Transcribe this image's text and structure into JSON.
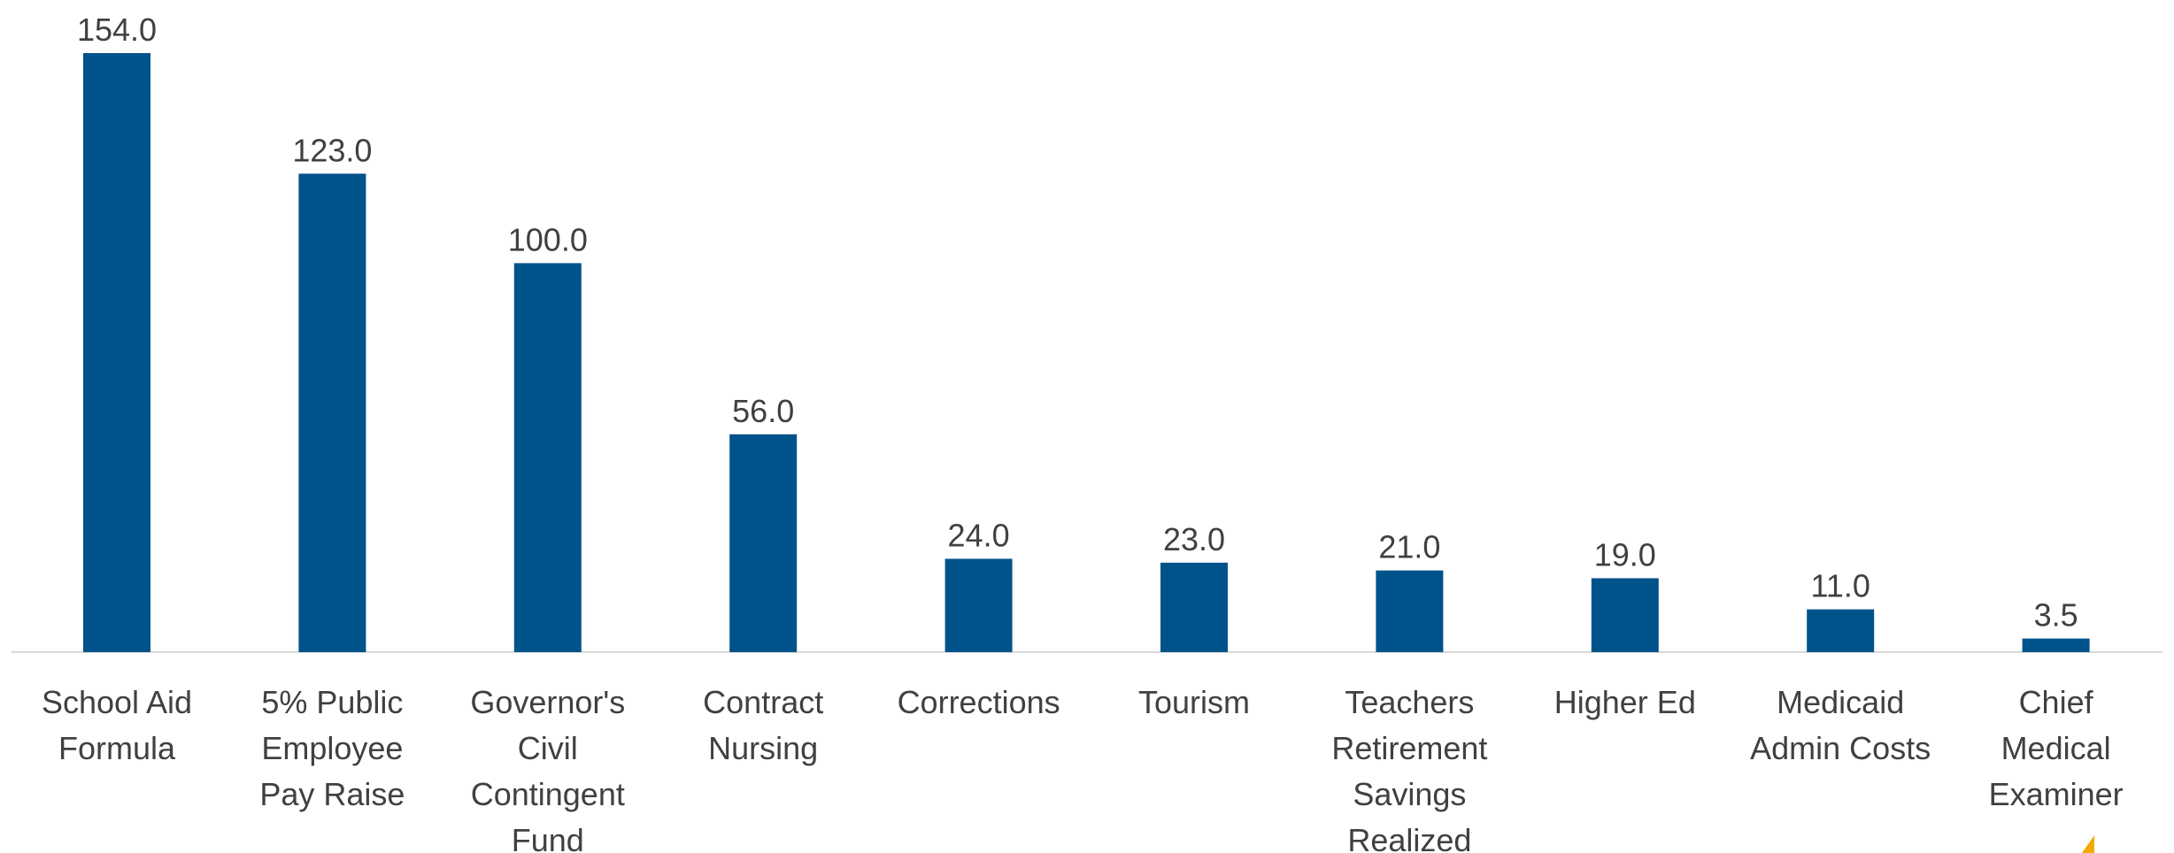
{
  "chart_data": {
    "type": "bar",
    "categories": [
      "School Aid Formula",
      "5% Public Employee Pay Raise",
      "Governor's Civil Contingent Fund",
      "Contract Nursing",
      "Corrections",
      "Tourism",
      "Teachers Retirement Savings Realized",
      "Higher Ed",
      "Medicaid Admin Costs",
      "Chief Medical Examiner"
    ],
    "values": [
      154,
      123,
      100,
      56,
      24,
      23,
      21,
      19,
      11,
      3.5
    ],
    "value_labels": [
      "154.0",
      "123.0",
      "100.0",
      "56.0",
      "24.0",
      "23.0",
      "21.0",
      "19.0",
      "11.0",
      "3.5"
    ],
    "color": "#00538a",
    "ylim": [
      0,
      154
    ]
  }
}
